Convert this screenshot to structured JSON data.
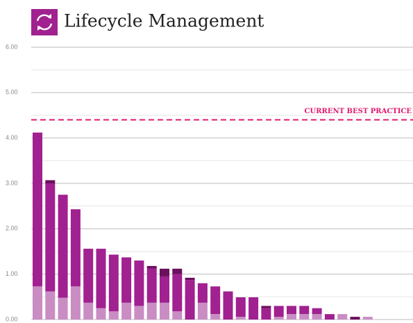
{
  "chart_data": {
    "type": "stacked_bar",
    "title": "Lifecycle Management",
    "categories": [
      null,
      null,
      null,
      null,
      null,
      null,
      null,
      null,
      null,
      null,
      null,
      null,
      null,
      null,
      null,
      null,
      null,
      null,
      null,
      null,
      null,
      null,
      null,
      null,
      null,
      null,
      null
    ],
    "series": [
      {
        "color": "#c98dc4",
        "values": [
          0.73,
          0.62,
          0.48,
          0.73,
          0.37,
          0.25,
          0.18,
          0.37,
          0.3,
          0.37,
          0.37,
          0.18,
          0,
          0.37,
          0.12,
          0,
          0.06,
          0,
          0,
          0.06,
          0.12,
          0.12,
          0.12,
          0,
          0.12,
          0,
          0.06
        ]
      },
      {
        "color": "#a0218f",
        "values": [
          3.39,
          2.38,
          2.27,
          1.7,
          1.19,
          1.31,
          1.25,
          1.0,
          1.0,
          0.75,
          0.58,
          0.82,
          0.87,
          0.43,
          0.61,
          0.62,
          0.43,
          0.49,
          0.25,
          0.24,
          0.18,
          0.18,
          0.13,
          0.12,
          0,
          0,
          0
        ]
      },
      {
        "color": "#6b0f5e",
        "values": [
          0,
          0.07,
          0,
          0,
          0,
          0,
          0,
          0,
          0,
          0.06,
          0.17,
          0.12,
          0.05,
          0,
          0,
          0,
          0,
          0,
          0.05,
          0,
          0,
          0,
          0,
          0,
          0,
          0.06,
          0
        ]
      }
    ],
    "ylim": [
      0,
      6
    ],
    "yticks": [
      {
        "value": 0,
        "label": "0.00"
      },
      {
        "value": 1,
        "label": "1.00"
      },
      {
        "value": 2,
        "label": "2.00"
      },
      {
        "value": 3,
        "label": "3.00"
      },
      {
        "value": 4,
        "label": "4.00"
      },
      {
        "value": 5,
        "label": "5.00"
      },
      {
        "value": 6,
        "label": "6.00"
      }
    ],
    "minor_yticks": [
      0.5,
      1.5,
      2.5,
      3.5,
      4.5,
      5.5
    ],
    "grid": true,
    "reference_line": {
      "value": 4.4,
      "label": "CURRENT BEST PRACTICE",
      "color": "#e0196e"
    }
  }
}
